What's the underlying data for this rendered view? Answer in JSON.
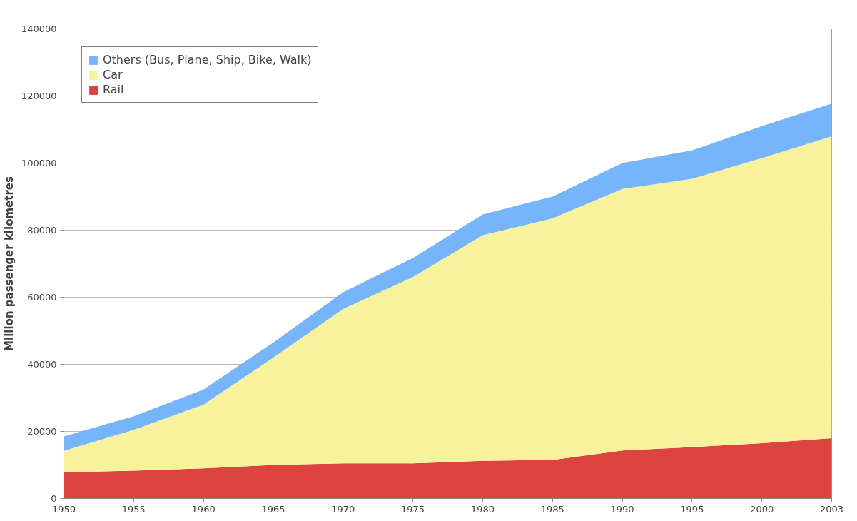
{
  "chart_data": {
    "type": "area",
    "stacked": true,
    "ylabel": "Million passenger kilometres",
    "categories": [
      "1950",
      "1955",
      "1960",
      "1965",
      "1970",
      "1975",
      "1980",
      "1985",
      "1990",
      "1995",
      "2000",
      "2003"
    ],
    "series": [
      {
        "name": "Rail",
        "color": "#dd4440",
        "values": [
          7800,
          8300,
          9000,
          10000,
          10500,
          10500,
          11200,
          11500,
          14300,
          15300,
          16500,
          18000
        ]
      },
      {
        "name": "Car",
        "color": "#f9f29d",
        "values": [
          6400,
          12200,
          19000,
          32000,
          46000,
          55500,
          67300,
          72000,
          78000,
          80000,
          85000,
          90000
        ]
      },
      {
        "name": "Others (Bus, Plane, Ship, Bike, Walk)",
        "color": "#77b5fb",
        "values": [
          4300,
          4000,
          4500,
          4500,
          5000,
          5700,
          6200,
          6500,
          7700,
          8500,
          9500,
          9700
        ]
      }
    ],
    "ylim": [
      0,
      140000
    ],
    "yticks": [
      0,
      20000,
      40000,
      60000,
      80000,
      100000,
      120000,
      140000
    ],
    "grid": "y",
    "legend": "top left"
  }
}
